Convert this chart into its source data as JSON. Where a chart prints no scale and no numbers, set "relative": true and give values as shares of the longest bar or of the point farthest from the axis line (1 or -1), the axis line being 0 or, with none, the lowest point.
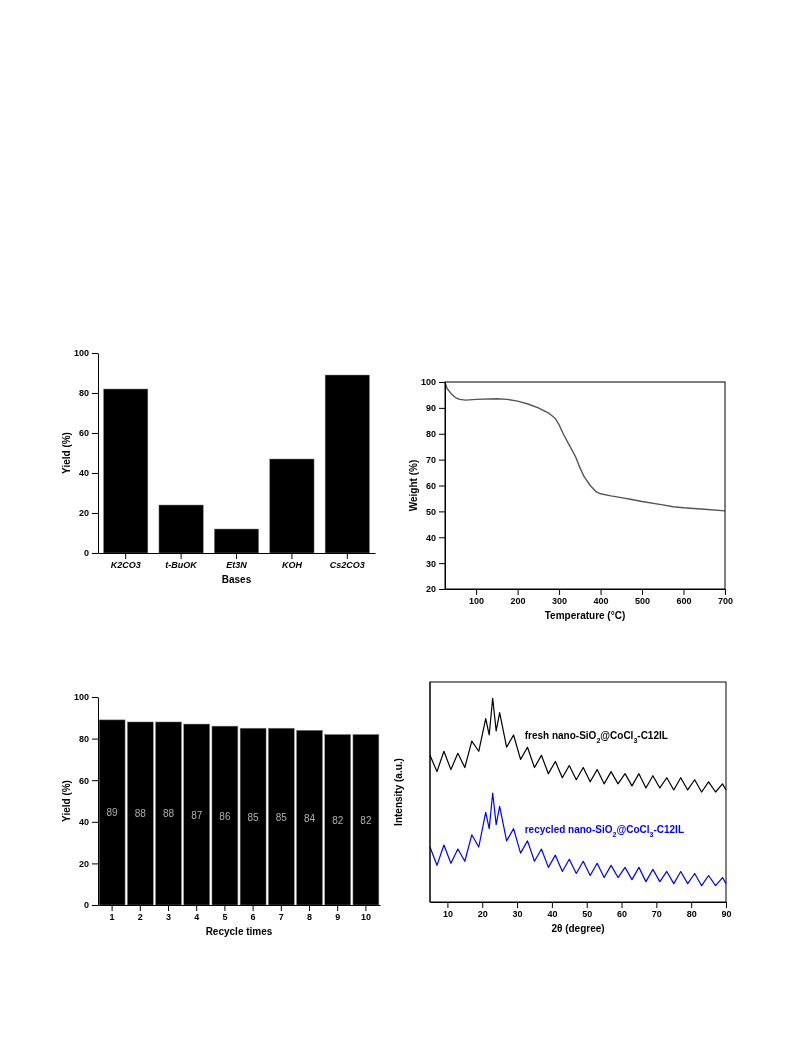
{
  "chart_data": [
    {
      "type": "bar",
      "xlabel": "Bases",
      "ylabel": "Yield (%)",
      "categories": [
        "K2CO3",
        "t-BuOK",
        "Et3N",
        "KOH",
        "Cs2CO3"
      ],
      "values": [
        82,
        24,
        12,
        47,
        89
      ],
      "color": "#000000",
      "ylim": [
        0,
        100
      ],
      "yticks": [
        0,
        20,
        40,
        60,
        80,
        100
      ]
    },
    {
      "type": "line",
      "xlabel": "Temperature (°C)",
      "ylabel": "Weight (%)",
      "xlim": [
        25,
        700
      ],
      "xticks": [
        100,
        200,
        300,
        400,
        500,
        600,
        700
      ],
      "ylim": [
        20,
        100
      ],
      "yticks": [
        20,
        30,
        40,
        50,
        60,
        70,
        80,
        90,
        100
      ],
      "series": [
        {
          "color": "#555555",
          "x": [
            25,
            30,
            40,
            50,
            60,
            75,
            100,
            150,
            175,
            200,
            225,
            250,
            275,
            290,
            300,
            310,
            325,
            340,
            350,
            360,
            375,
            390,
            400,
            425,
            450,
            475,
            500,
            550,
            575,
            600,
            650,
            700
          ],
          "values": [
            100,
            97.5,
            95.5,
            94,
            93.3,
            93,
            93.3,
            93.5,
            93.3,
            92.6,
            91.5,
            90,
            88,
            86,
            83.5,
            80,
            75.5,
            71,
            67,
            63.5,
            60,
            57.5,
            56.8,
            56,
            55.3,
            54.6,
            53.8,
            52.5,
            51.8,
            51.4,
            50.8,
            50.2
          ]
        }
      ]
    },
    {
      "type": "bar",
      "xlabel": "Recycle times",
      "ylabel": "Yield (%)",
      "categories": [
        "1",
        "2",
        "3",
        "4",
        "5",
        "6",
        "7",
        "8",
        "9",
        "10"
      ],
      "values": [
        89,
        88,
        88,
        87,
        86,
        85,
        85,
        84,
        82,
        82
      ],
      "color": "#000000",
      "ylim": [
        0,
        100
      ],
      "yticks": [
        0,
        20,
        40,
        60,
        80,
        100
      ],
      "data_labels": true
    },
    {
      "type": "line",
      "relative": true,
      "xlabel": "2θ (degree)",
      "ylabel": "Intensity (a.u.)",
      "xlim": [
        5,
        90
      ],
      "xticks": [
        10,
        20,
        30,
        40,
        50,
        60,
        70,
        80,
        90
      ],
      "series": [
        {
          "name": "fresh nano-SiO$_{2}$@CoCl$_{3}$-C12IL",
          "color": "#000000",
          "x": [
            5,
            7,
            9,
            11,
            13,
            15,
            17,
            19,
            21,
            22,
            23,
            24,
            25,
            27,
            29,
            31,
            33,
            35,
            37,
            39,
            41,
            43,
            45,
            47,
            49,
            51,
            53,
            55,
            57,
            59,
            61,
            63,
            65,
            67,
            69,
            71,
            73,
            75,
            77,
            79,
            81,
            83,
            85,
            87,
            89,
            90
          ],
          "values": [
            0.72,
            0.64,
            0.74,
            0.65,
            0.73,
            0.66,
            0.79,
            0.74,
            0.9,
            0.82,
            1.0,
            0.84,
            0.93,
            0.76,
            0.82,
            0.7,
            0.76,
            0.66,
            0.72,
            0.63,
            0.69,
            0.61,
            0.67,
            0.6,
            0.66,
            0.59,
            0.65,
            0.58,
            0.64,
            0.58,
            0.63,
            0.57,
            0.63,
            0.56,
            0.62,
            0.56,
            0.61,
            0.55,
            0.61,
            0.55,
            0.6,
            0.54,
            0.59,
            0.54,
            0.58,
            0.55
          ]
        },
        {
          "name": "recycled nano-SiO$_{2}$@CoCl$_{3}$-C12IL",
          "color": "#0000ff",
          "x": [
            5,
            7,
            9,
            11,
            13,
            15,
            17,
            19,
            21,
            22,
            23,
            24,
            25,
            27,
            29,
            31,
            33,
            35,
            37,
            39,
            41,
            43,
            45,
            47,
            49,
            51,
            53,
            55,
            57,
            59,
            61,
            63,
            65,
            67,
            69,
            71,
            73,
            75,
            77,
            79,
            81,
            83,
            85,
            87,
            89,
            90
          ],
          "values": [
            0.27,
            0.18,
            0.28,
            0.19,
            0.26,
            0.2,
            0.33,
            0.27,
            0.44,
            0.36,
            0.535,
            0.38,
            0.47,
            0.3,
            0.36,
            0.24,
            0.3,
            0.2,
            0.26,
            0.17,
            0.23,
            0.15,
            0.21,
            0.14,
            0.2,
            0.13,
            0.19,
            0.12,
            0.18,
            0.12,
            0.17,
            0.11,
            0.17,
            0.1,
            0.16,
            0.1,
            0.15,
            0.09,
            0.15,
            0.09,
            0.14,
            0.08,
            0.13,
            0.08,
            0.12,
            0.09
          ]
        }
      ]
    }
  ]
}
